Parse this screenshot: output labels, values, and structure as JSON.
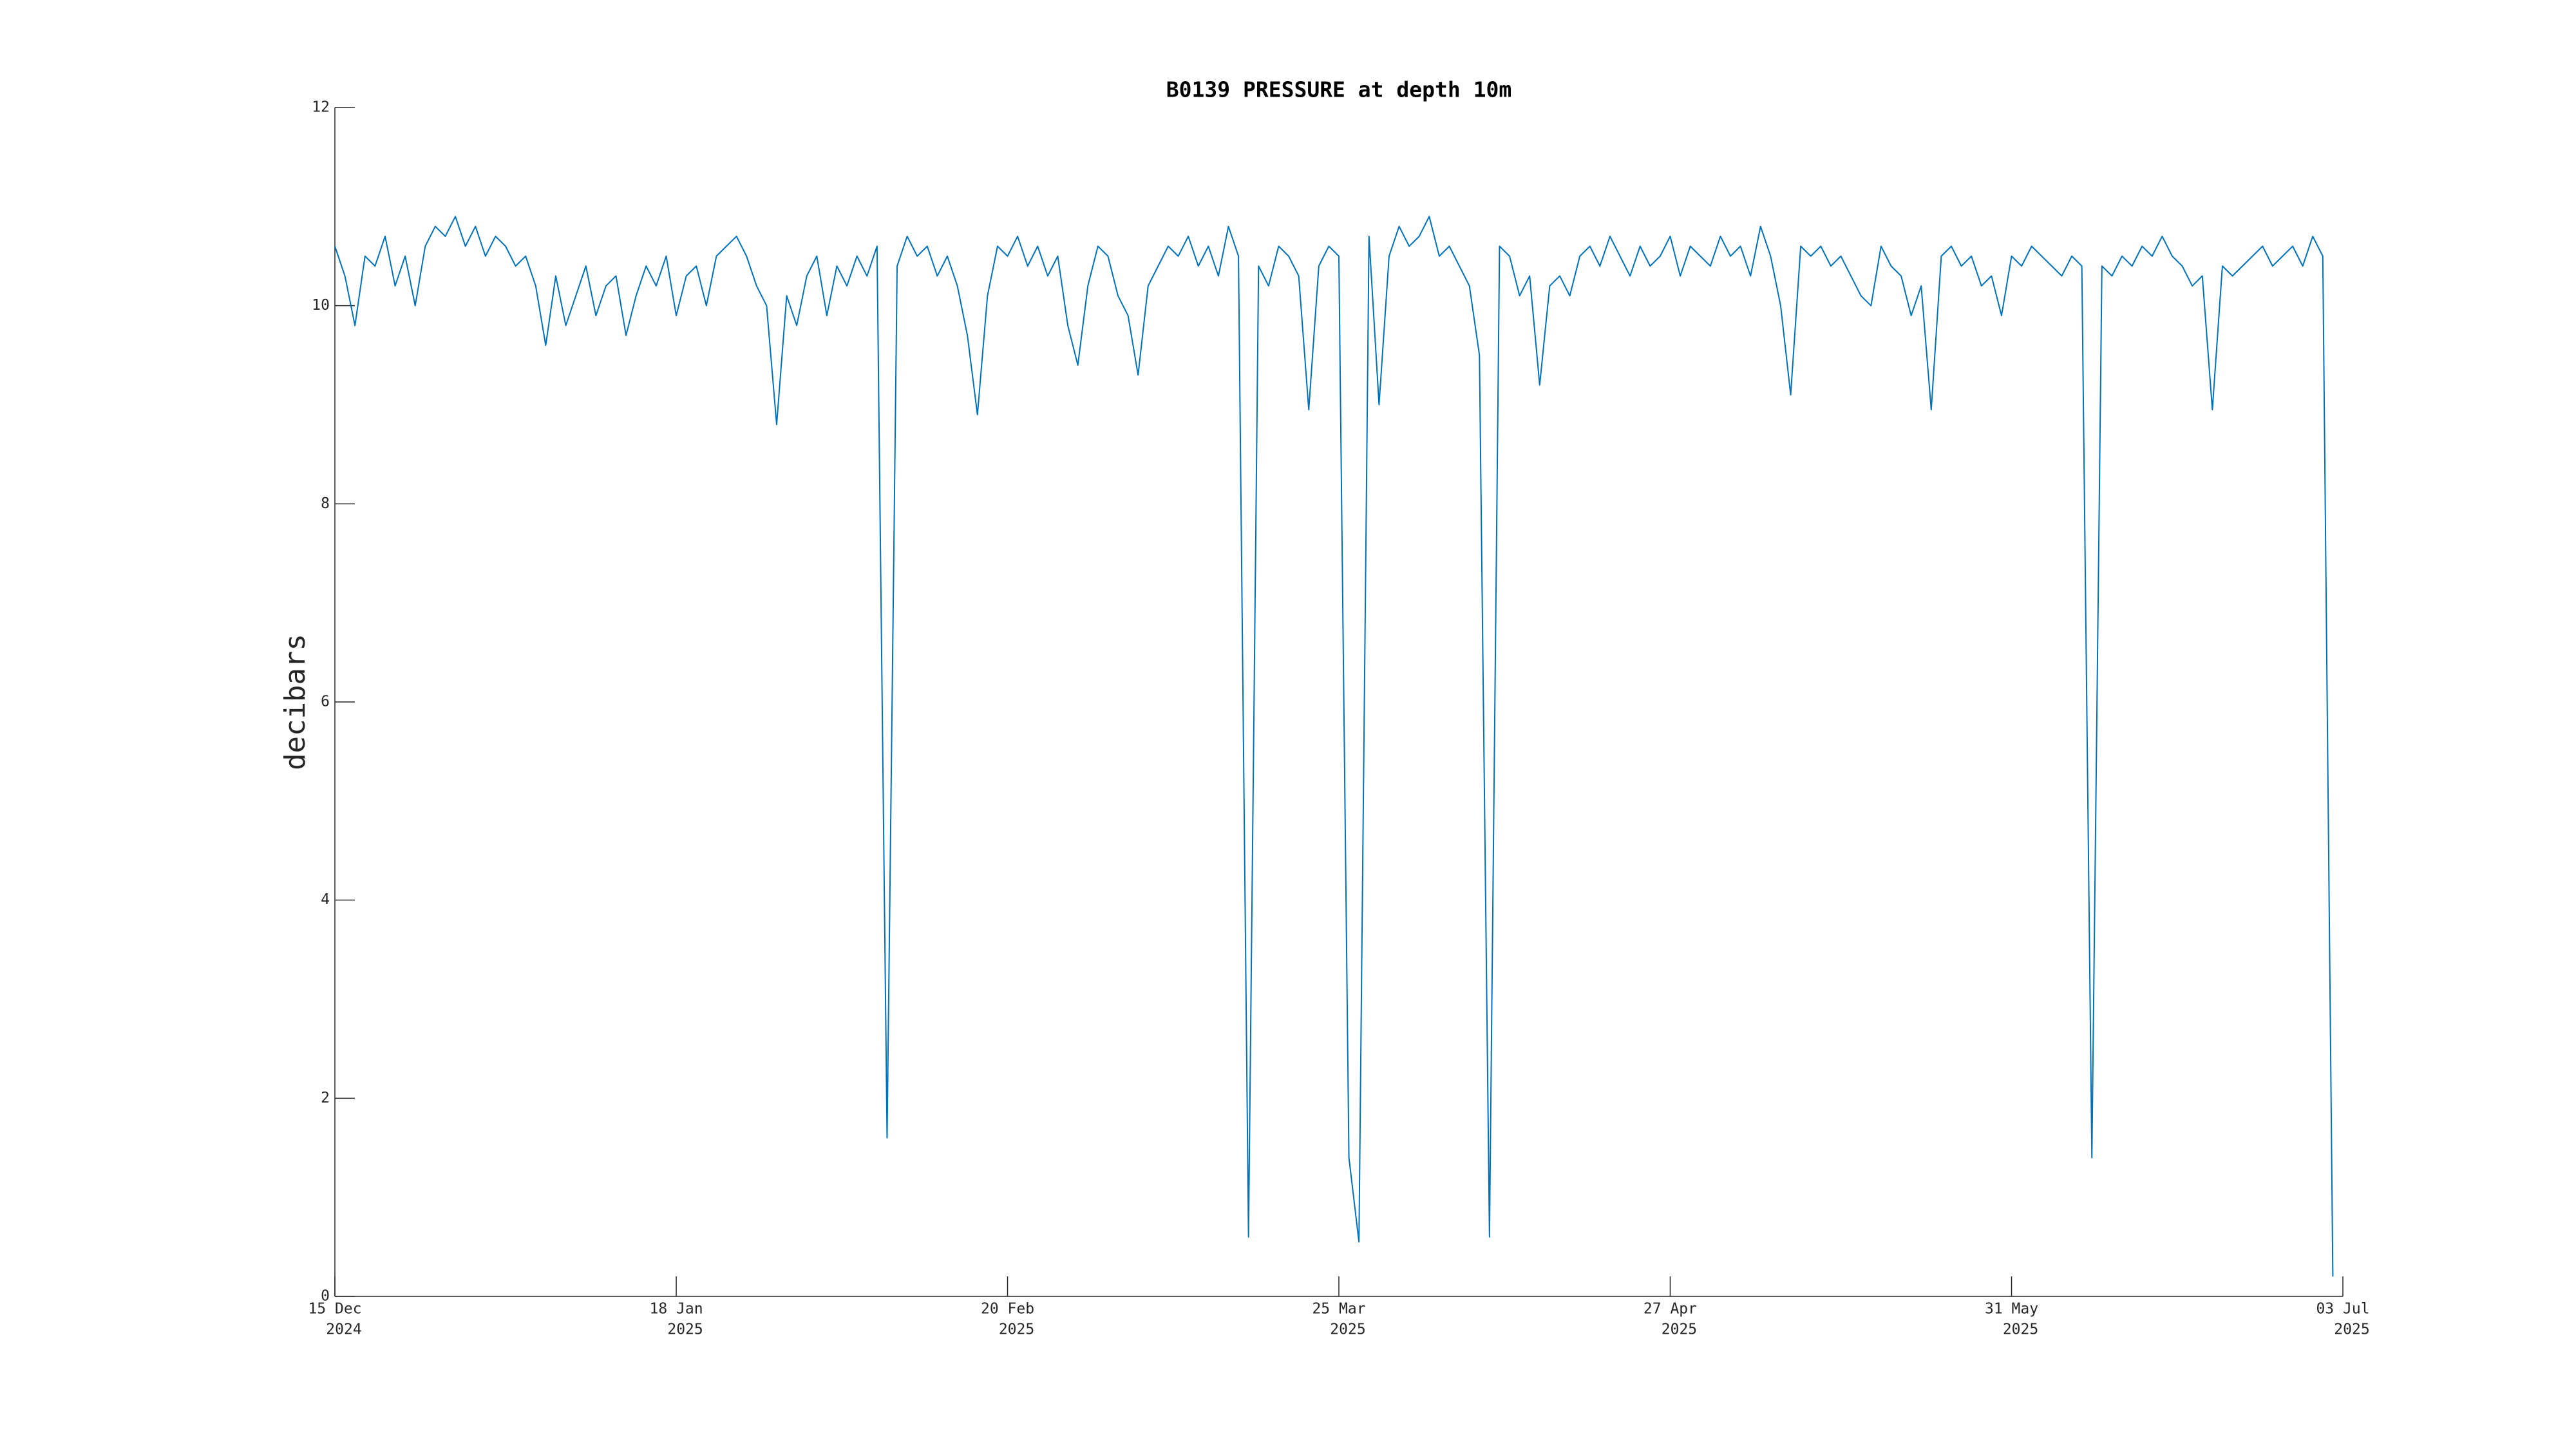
{
  "chart_data": {
    "type": "line",
    "title": "B0139 PRESSURE at depth 10m",
    "y_label": "decibars",
    "xlim": [
      "2024-12-15",
      "2025-07-03"
    ],
    "ylim": [
      0,
      12
    ],
    "yticks": [
      0,
      2,
      4,
      6,
      8,
      10,
      12
    ],
    "xticks": [
      {
        "value": "2024-12-15",
        "label": [
          "15 Dec",
          "2024"
        ]
      },
      {
        "value": "2025-01-18",
        "label": [
          "18 Jan",
          "2025"
        ]
      },
      {
        "value": "2025-02-20",
        "label": [
          "20 Feb",
          "2025"
        ]
      },
      {
        "value": "2025-03-25",
        "label": [
          "25 Mar",
          "2025"
        ]
      },
      {
        "value": "2025-04-27",
        "label": [
          "27 Apr",
          "2025"
        ]
      },
      {
        "value": "2025-05-31",
        "label": [
          "31 May",
          "2025"
        ]
      },
      {
        "value": "2025-07-03",
        "label": [
          "03 Jul",
          "2025"
        ]
      }
    ],
    "grid": false,
    "x": [
      "2024-12-15",
      "2024-12-16",
      "2024-12-17",
      "2024-12-18",
      "2024-12-19",
      "2024-12-20",
      "2024-12-21",
      "2024-12-22",
      "2024-12-23",
      "2024-12-24",
      "2024-12-25",
      "2024-12-26",
      "2024-12-27",
      "2024-12-28",
      "2024-12-29",
      "2024-12-30",
      "2024-12-31",
      "2025-01-01",
      "2025-01-02",
      "2025-01-03",
      "2025-01-04",
      "2025-01-05",
      "2025-01-06",
      "2025-01-07",
      "2025-01-08",
      "2025-01-09",
      "2025-01-10",
      "2025-01-11",
      "2025-01-12",
      "2025-01-13",
      "2025-01-14",
      "2025-01-15",
      "2025-01-16",
      "2025-01-17",
      "2025-01-18",
      "2025-01-19",
      "2025-01-20",
      "2025-01-21",
      "2025-01-22",
      "2025-01-23",
      "2025-01-24",
      "2025-01-25",
      "2025-01-26",
      "2025-01-27",
      "2025-01-28",
      "2025-01-29",
      "2025-01-30",
      "2025-01-31",
      "2025-02-01",
      "2025-02-02",
      "2025-02-03",
      "2025-02-04",
      "2025-02-05",
      "2025-02-06",
      "2025-02-07",
      "2025-02-08",
      "2025-02-09",
      "2025-02-10",
      "2025-02-11",
      "2025-02-12",
      "2025-02-13",
      "2025-02-14",
      "2025-02-15",
      "2025-02-16",
      "2025-02-17",
      "2025-02-18",
      "2025-02-19",
      "2025-02-20",
      "2025-02-21",
      "2025-02-22",
      "2025-02-23",
      "2025-02-24",
      "2025-02-25",
      "2025-02-26",
      "2025-02-27",
      "2025-02-28",
      "2025-03-01",
      "2025-03-02",
      "2025-03-03",
      "2025-03-04",
      "2025-03-05",
      "2025-03-06",
      "2025-03-07",
      "2025-03-08",
      "2025-03-09",
      "2025-03-10",
      "2025-03-11",
      "2025-03-12",
      "2025-03-13",
      "2025-03-14",
      "2025-03-15",
      "2025-03-16",
      "2025-03-17",
      "2025-03-18",
      "2025-03-19",
      "2025-03-20",
      "2025-03-21",
      "2025-03-22",
      "2025-03-23",
      "2025-03-24",
      "2025-03-25",
      "2025-03-26",
      "2025-03-27",
      "2025-03-28",
      "2025-03-29",
      "2025-03-30",
      "2025-03-31",
      "2025-04-01",
      "2025-04-02",
      "2025-04-03",
      "2025-04-04",
      "2025-04-05",
      "2025-04-06",
      "2025-04-07",
      "2025-04-08",
      "2025-04-09",
      "2025-04-10",
      "2025-04-11",
      "2025-04-12",
      "2025-04-13",
      "2025-04-14",
      "2025-04-15",
      "2025-04-16",
      "2025-04-17",
      "2025-04-18",
      "2025-04-19",
      "2025-04-20",
      "2025-04-21",
      "2025-04-22",
      "2025-04-23",
      "2025-04-24",
      "2025-04-25",
      "2025-04-26",
      "2025-04-27",
      "2025-04-28",
      "2025-04-29",
      "2025-04-30",
      "2025-05-01",
      "2025-05-02",
      "2025-05-03",
      "2025-05-04",
      "2025-05-05",
      "2025-05-06",
      "2025-05-07",
      "2025-05-08",
      "2025-05-09",
      "2025-05-10",
      "2025-05-11",
      "2025-05-12",
      "2025-05-13",
      "2025-05-14",
      "2025-05-15",
      "2025-05-16",
      "2025-05-17",
      "2025-05-18",
      "2025-05-19",
      "2025-05-20",
      "2025-05-21",
      "2025-05-22",
      "2025-05-23",
      "2025-05-24",
      "2025-05-25",
      "2025-05-26",
      "2025-05-27",
      "2025-05-28",
      "2025-05-29",
      "2025-05-30",
      "2025-05-31",
      "2025-06-01",
      "2025-06-02",
      "2025-06-03",
      "2025-06-04",
      "2025-06-05",
      "2025-06-06",
      "2025-06-07",
      "2025-06-08",
      "2025-06-09",
      "2025-06-10",
      "2025-06-11",
      "2025-06-12",
      "2025-06-13",
      "2025-06-14",
      "2025-06-15",
      "2025-06-16",
      "2025-06-17",
      "2025-06-18",
      "2025-06-19",
      "2025-06-20",
      "2025-06-21",
      "2025-06-22",
      "2025-06-23",
      "2025-06-24",
      "2025-06-25",
      "2025-06-26",
      "2025-06-27",
      "2025-06-28",
      "2025-06-29",
      "2025-06-30",
      "2025-07-01",
      "2025-07-02"
    ],
    "series": [
      {
        "color": "#0072bd",
        "values": [
          10.6,
          10.3,
          9.8,
          10.5,
          10.4,
          10.7,
          10.2,
          10.5,
          10.0,
          10.6,
          10.8,
          10.7,
          10.9,
          10.6,
          10.8,
          10.5,
          10.7,
          10.6,
          10.4,
          10.5,
          10.2,
          9.6,
          10.3,
          9.8,
          10.1,
          10.4,
          9.9,
          10.2,
          10.3,
          9.7,
          10.1,
          10.4,
          10.2,
          10.5,
          9.9,
          10.3,
          10.4,
          10.0,
          10.5,
          10.6,
          10.7,
          10.5,
          10.2,
          10.0,
          8.8,
          10.1,
          9.8,
          10.3,
          10.5,
          9.9,
          10.4,
          10.2,
          10.5,
          10.3,
          10.6,
          1.6,
          10.4,
          10.7,
          10.5,
          10.6,
          10.3,
          10.5,
          10.2,
          9.7,
          8.9,
          10.1,
          10.6,
          10.5,
          10.7,
          10.4,
          10.6,
          10.3,
          10.5,
          9.8,
          9.4,
          10.2,
          10.6,
          10.5,
          10.1,
          9.9,
          9.3,
          10.2,
          10.4,
          10.6,
          10.5,
          10.7,
          10.4,
          10.6,
          10.3,
          10.8,
          10.5,
          0.6,
          10.4,
          10.2,
          10.6,
          10.5,
          10.3,
          8.95,
          10.4,
          10.6,
          10.5,
          1.4,
          0.55,
          10.7,
          9.0,
          10.5,
          10.8,
          10.6,
          10.7,
          10.9,
          10.5,
          10.6,
          10.4,
          10.2,
          9.5,
          0.6,
          10.6,
          10.5,
          10.1,
          10.3,
          9.2,
          10.2,
          10.3,
          10.1,
          10.5,
          10.6,
          10.4,
          10.7,
          10.5,
          10.3,
          10.6,
          10.4,
          10.5,
          10.7,
          10.3,
          10.6,
          10.5,
          10.4,
          10.7,
          10.5,
          10.6,
          10.3,
          10.8,
          10.5,
          10.0,
          9.1,
          10.6,
          10.5,
          10.6,
          10.4,
          10.5,
          10.3,
          10.1,
          10.0,
          10.6,
          10.4,
          10.3,
          9.9,
          10.2,
          8.95,
          10.5,
          10.6,
          10.4,
          10.5,
          10.2,
          10.3,
          9.9,
          10.5,
          10.4,
          10.6,
          10.5,
          10.4,
          10.3,
          10.5,
          10.4,
          1.4,
          10.4,
          10.3,
          10.5,
          10.4,
          10.6,
          10.5,
          10.7,
          10.5,
          10.4,
          10.2,
          10.3,
          8.95,
          10.4,
          10.3,
          10.4,
          10.5,
          10.6,
          10.4,
          10.5,
          10.6,
          10.4,
          10.7,
          10.5,
          0.2
        ]
      }
    ]
  }
}
